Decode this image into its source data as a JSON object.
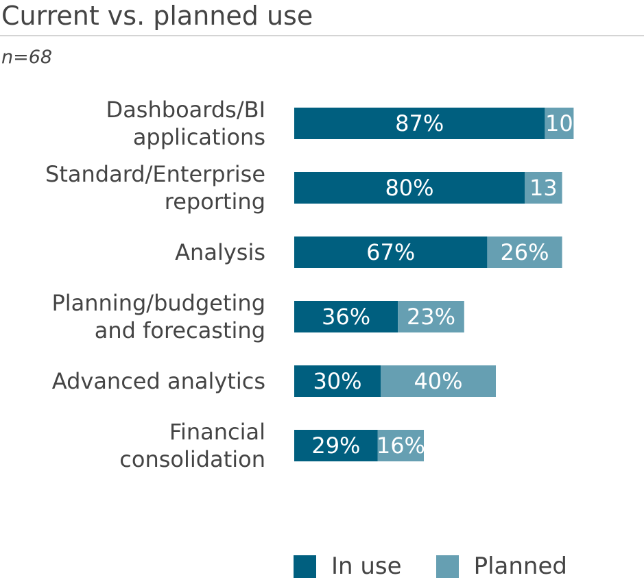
{
  "chart_data": {
    "type": "bar",
    "orientation": "horizontal",
    "stacked": true,
    "title": "Current vs. planned use",
    "subtitle": "n=68",
    "categories": [
      [
        "Dashboards/BI",
        "applications"
      ],
      [
        "Standard/Enterprise",
        "reporting"
      ],
      [
        "Analysis"
      ],
      [
        "Planning/budgeting",
        "and forecasting"
      ],
      [
        "Advanced analytics"
      ],
      [
        "Financial",
        "consolidation"
      ]
    ],
    "series": [
      {
        "name": "In use",
        "color": "#005f7f",
        "values": [
          87,
          80,
          67,
          36,
          30,
          29
        ],
        "labels": [
          "87%",
          "80%",
          "67%",
          "36%",
          "30%",
          "29%"
        ]
      },
      {
        "name": "Planned",
        "color": "#669fb2",
        "values": [
          10,
          13,
          26,
          23,
          40,
          16
        ],
        "labels": [
          "10",
          "13",
          "26%",
          "23%",
          "40%",
          "16%"
        ]
      }
    ],
    "xlim": [
      0,
      100
    ],
    "grid": false,
    "legend_position": "bottom"
  }
}
